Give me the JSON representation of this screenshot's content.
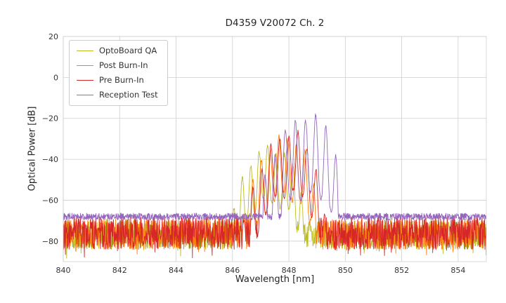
{
  "chart_data": {
    "type": "line",
    "title": "D4359 V20072 Ch. 2",
    "xlabel": "Wavelength [nm]",
    "ylabel": "Optical Power [dB]",
    "xlim": [
      840,
      855
    ],
    "ylim": [
      -90,
      20
    ],
    "xticks": [
      840,
      842,
      844,
      846,
      848,
      850,
      852,
      854
    ],
    "xtick_labels": [
      "840",
      "842",
      "844",
      "846",
      "848",
      "850",
      "852",
      "854"
    ],
    "yticks": [
      20,
      0,
      -20,
      -40,
      -60,
      -80
    ],
    "ytick_labels": [
      "20",
      "0",
      "−20",
      "−40",
      "−60",
      "−80"
    ],
    "grid": true,
    "grid_color": "#cfcfcf",
    "background_color": "#ffffff",
    "legend_position": "upper left",
    "series": [
      {
        "name": "OptoBoard QA",
        "color": "#bcbd22",
        "noise_floor_db": -77,
        "noise_amplitude_db": 7,
        "noise_spikes": true,
        "signal": {
          "center_nm": 847.2,
          "peak_db": -35,
          "left_width_nm": 1.4,
          "left_power": 2,
          "right_width_nm": 1.6,
          "right_power": 3,
          "mode_spacing_nm": 0.3,
          "mode_phase": 0.15,
          "notch_depth_db": 26,
          "range_nm": [
            845.8,
            848.8
          ]
        }
      },
      {
        "name": "Post Burn-In",
        "color": "#ff7f0e",
        "noise_floor_db": -76.5,
        "noise_amplitude_db": 7.5,
        "noise_spikes": true,
        "signal": {
          "center_nm": 847.8,
          "peak_db": -30,
          "left_width_nm": 1.6,
          "left_power": 2,
          "right_width_nm": 1.4,
          "right_power": 3,
          "mode_spacing_nm": 0.31,
          "mode_phase": 0.5,
          "notch_depth_db": 28,
          "range_nm": [
            846.1,
            849.15
          ]
        }
      },
      {
        "name": "Pre Burn-In",
        "color": "#d62728",
        "noise_floor_db": -76,
        "noise_amplitude_db": 8,
        "noise_spikes": true,
        "signal": {
          "center_nm": 848.0,
          "peak_db": -28,
          "left_width_nm": 1.7,
          "left_power": 2,
          "right_width_nm": 1.35,
          "right_power": 3,
          "mode_spacing_nm": 0.32,
          "mode_phase": 0.0,
          "notch_depth_db": 28,
          "range_nm": [
            846.2,
            849.35
          ]
        }
      },
      {
        "name": "Reception Test",
        "color": "#9467bd",
        "noise_floor_db": -68,
        "noise_amplitude_db": 1.7,
        "noise_spikes": false,
        "signal": {
          "center_nm": 848.5,
          "peak_db": -20,
          "left_width_nm": 1.7,
          "left_power": 2,
          "right_width_nm": 1.35,
          "right_power": 6,
          "mode_spacing_nm": 0.36,
          "mode_phase": 0.25,
          "notch_depth_db": 38,
          "range_nm": [
            846.9,
            849.85
          ]
        }
      }
    ]
  }
}
